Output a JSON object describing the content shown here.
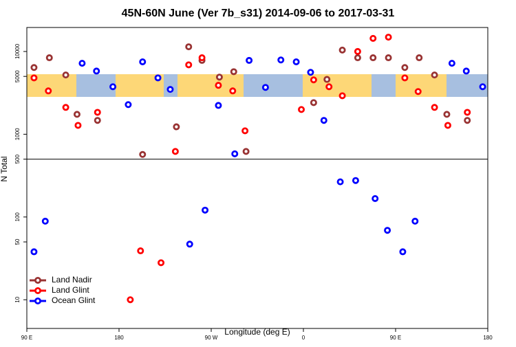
{
  "chart_data": {
    "type": "scatter",
    "title": "45N-60N June (Ver 7b_s31)   2014-09-06 to 2017-03-31",
    "xlabel": "Longitude (deg E)",
    "ylabel": "N Total",
    "xlim": [
      90,
      540
    ],
    "xticks": [
      {
        "value": 90,
        "label": "90 E"
      },
      180,
      {
        "value": 270,
        "label": "90 W"
      },
      {
        "value": 360,
        "label": "0"
      },
      {
        "value": 450,
        "label": "90 E"
      },
      {
        "value": 540,
        "label": "180"
      }
    ],
    "ylim": [
      4.5,
      19500
    ],
    "yscale": "log",
    "yticks": [
      10,
      50,
      100,
      500,
      1000,
      5000,
      10000
    ],
    "hline": 500,
    "legend": "lower left",
    "series": [
      {
        "name": "Land Nadir",
        "color": "#993333",
        "x": [
          97,
          112,
          128,
          139,
          159,
          203,
          236,
          248,
          261,
          278,
          292,
          304,
          370,
          383,
          398,
          413,
          428,
          443,
          459,
          473,
          488,
          500,
          520
        ],
        "values": [
          6400,
          8400,
          5200,
          1740,
          1470,
          570,
          1230,
          11400,
          7800,
          4900,
          5700,
          620,
          2410,
          4600,
          10400,
          8400,
          8400,
          8400,
          6400,
          8400,
          5200,
          1740,
          1470
        ]
      },
      {
        "name": "Land Glint",
        "color": "#ff0000",
        "x": [
          97,
          111,
          128,
          140,
          159,
          191,
          201,
          221,
          235,
          248,
          261,
          277,
          291,
          303,
          358,
          370,
          385,
          398,
          413,
          428,
          443,
          459,
          472,
          488,
          501,
          520
        ],
        "values": [
          4800,
          3340,
          2110,
          1280,
          1840,
          10,
          39,
          28,
          620,
          6900,
          8400,
          3900,
          3340,
          1100,
          1990,
          4540,
          3750,
          2920,
          10000,
          14400,
          14900,
          4800,
          3280,
          2110,
          1280,
          1840
        ]
      },
      {
        "name": "Ocean Glint",
        "color": "#0000ff",
        "x": [
          97,
          108,
          144,
          158,
          174,
          189,
          203,
          218,
          230,
          249,
          264,
          277,
          293,
          307,
          323,
          338,
          353,
          367,
          380,
          396,
          411,
          430,
          442,
          457,
          469,
          505,
          519,
          535
        ],
        "values": [
          38,
          89,
          7200,
          5800,
          3750,
          2280,
          7500,
          4800,
          3480,
          47,
          121,
          2230,
          580,
          7800,
          3680,
          7900,
          7500,
          5600,
          1470,
          266,
          276,
          167,
          69,
          38,
          89,
          7200,
          5800,
          3750
        ]
      }
    ]
  }
}
